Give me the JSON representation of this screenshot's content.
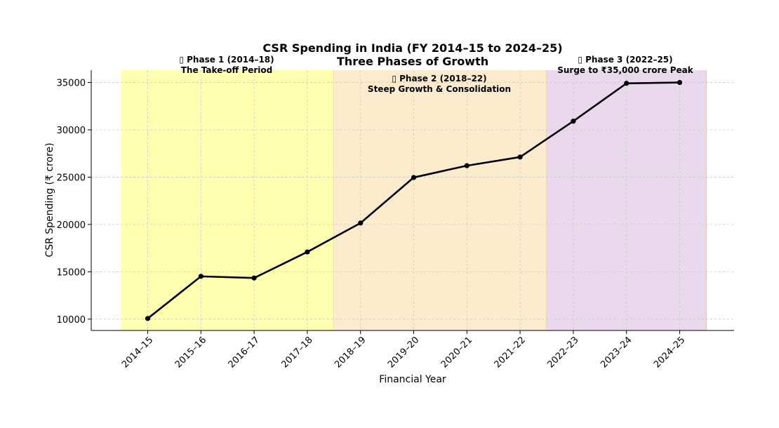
{
  "chart_data": {
    "type": "line",
    "title": "CSR Spending in India (FY 2014–15 to 2024–25)",
    "subtitle": "Three Phases of Growth",
    "xlabel": "Financial Year",
    "ylabel": "CSR Spending (₹ crore)",
    "categories": [
      "2014–15",
      "2015–16",
      "2016–17",
      "2017–18",
      "2018–19",
      "2019–20",
      "2020–21",
      "2021–22",
      "2022–23",
      "2023–24",
      "2024–25"
    ],
    "series": [
      {
        "name": "CSR Spending",
        "values": [
          10066,
          14517,
          14344,
          17098,
          20150,
          24965,
          26211,
          27123,
          30910,
          34909,
          35000
        ],
        "color": "#000000"
      }
    ],
    "ylim": [
      8800,
      36300
    ],
    "yticks": [
      10000,
      15000,
      20000,
      25000,
      30000,
      35000
    ],
    "grid": true,
    "phases": [
      {
        "label": "▯ Phase 1 (2014–18)",
        "sublabel": "The Take-off Period",
        "start": -0.5,
        "end": 3.5,
        "color": "#ffffb0"
      },
      {
        "label": "▯ Phase 2 (2018–22)",
        "sublabel": "Steep Growth & Consolidation",
        "start": 3.5,
        "end": 7.5,
        "color": "#fdebcd"
      },
      {
        "label": "▯ Phase 3 (2022–25)",
        "sublabel": "Surge to ₹35,000 crore Peak",
        "start": 7.5,
        "end": 10.5,
        "color": "#ead8ec"
      }
    ]
  }
}
